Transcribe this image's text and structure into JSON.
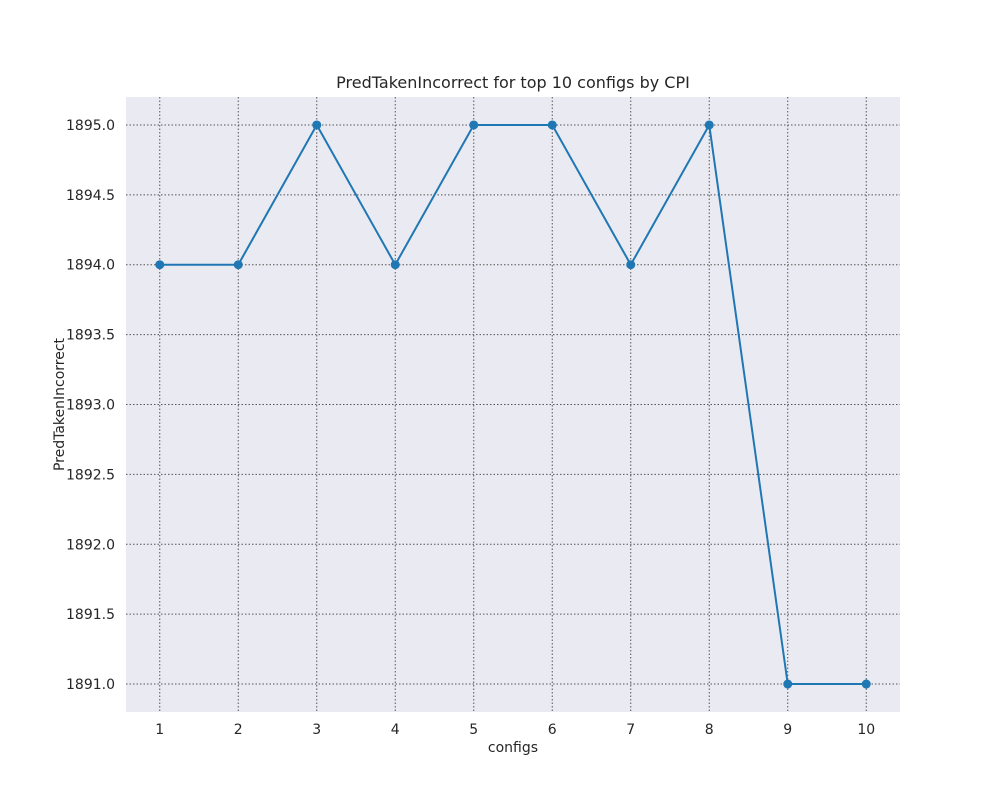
{
  "chart_data": {
    "type": "line",
    "title": "PredTakenIncorrect for top 10 configs by CPI",
    "xlabel": "configs",
    "ylabel": "PredTakenIncorrect",
    "x": [
      1,
      2,
      3,
      4,
      5,
      6,
      7,
      8,
      9,
      10
    ],
    "x_tick_labels": [
      "1",
      "2",
      "3",
      "4",
      "5",
      "6",
      "7",
      "8",
      "9",
      "10"
    ],
    "xlim": [
      0.57,
      10.43
    ],
    "series": [
      {
        "values": [
          1894,
          1894,
          1895,
          1894,
          1895,
          1895,
          1894,
          1895,
          1891,
          1891
        ],
        "color": "#1f77b4",
        "marker": "circle"
      }
    ],
    "y_ticks": [
      1891.0,
      1891.5,
      1892.0,
      1892.5,
      1893.0,
      1893.5,
      1894.0,
      1894.5,
      1895.0
    ],
    "y_tick_labels": [
      "1891.0",
      "1891.5",
      "1892.0",
      "1892.5",
      "1893.0",
      "1893.5",
      "1894.0",
      "1894.5",
      "1895.0"
    ],
    "ylim": [
      1890.8,
      1895.2
    ],
    "grid": true,
    "grid_style": "dotted",
    "background_color": "#eaeaf2",
    "legend": "none"
  }
}
